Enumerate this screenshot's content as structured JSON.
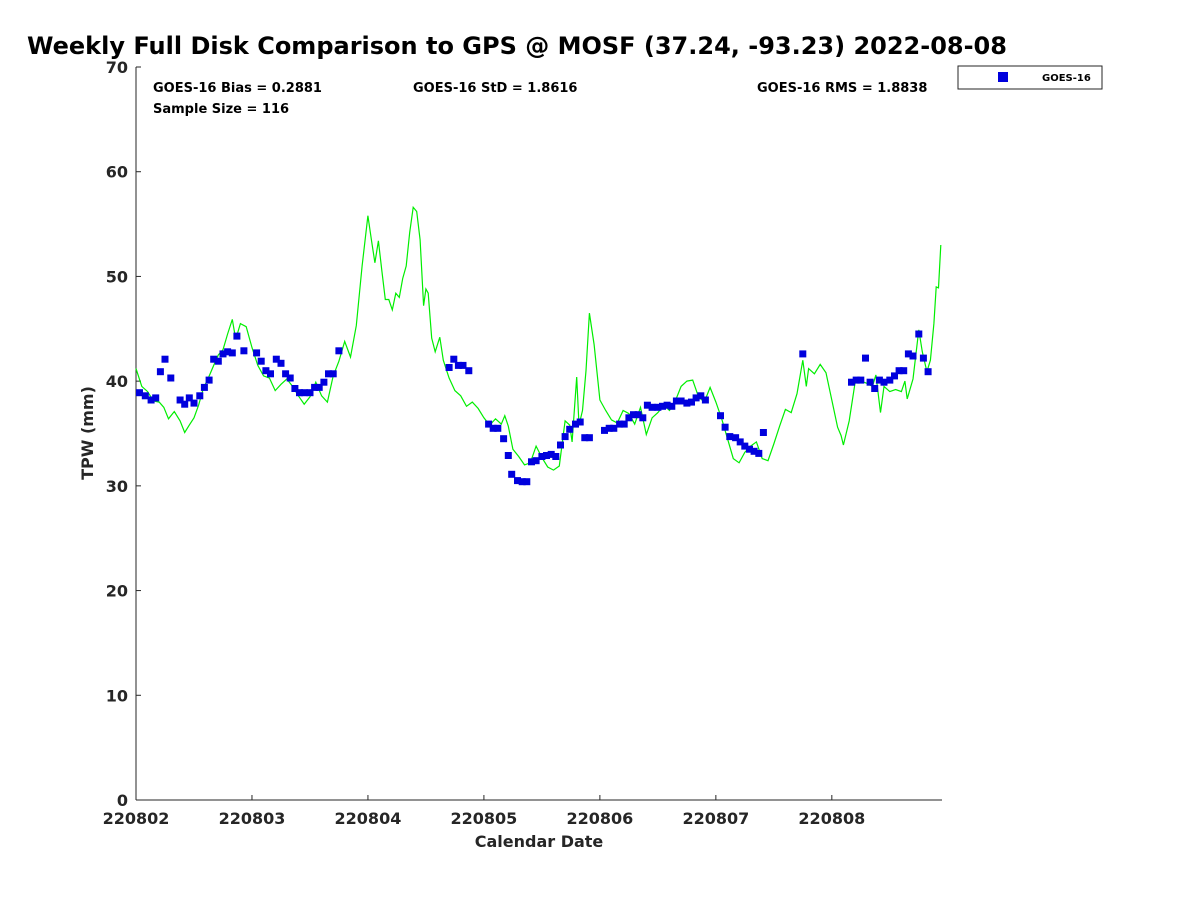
{
  "chart_data": {
    "type": "scatter",
    "title": "Weekly Full Disk Comparison to GPS @ MOSF (37.24, -93.23) 2022-08-08",
    "xlabel": "Calendar Date",
    "ylabel": "TPW (mm)",
    "xlim": [
      0,
      6.95
    ],
    "ylim": [
      0,
      70
    ],
    "yticks": [
      0,
      10,
      20,
      30,
      40,
      50,
      60,
      70
    ],
    "xticks": [
      {
        "value": 0,
        "label": "220802"
      },
      {
        "value": 1,
        "label": "220803"
      },
      {
        "value": 2,
        "label": "220804"
      },
      {
        "value": 3,
        "label": "220805"
      },
      {
        "value": 4,
        "label": "220806"
      },
      {
        "value": 5,
        "label": "220807"
      },
      {
        "value": 6,
        "label": "220808"
      }
    ],
    "stats": {
      "bias": "GOES-16 Bias = 0.2881",
      "std": "GOES-16 StD = 1.8616",
      "rms": "GOES-16 RMS = 1.8838",
      "sample": "Sample Size = 116"
    },
    "legend": {
      "label": "GOES-16",
      "placement": "outside-top-right"
    },
    "colors": {
      "goes": "#0000dd",
      "gps": "#00ee00",
      "axis": "#262626"
    },
    "series": [
      {
        "name": "GOES-16",
        "kind": "markers",
        "points": [
          [
            0.03,
            38.9
          ],
          [
            0.08,
            38.6
          ],
          [
            0.13,
            38.2
          ],
          [
            0.17,
            38.4
          ],
          [
            0.21,
            40.9
          ],
          [
            0.25,
            42.1
          ],
          [
            0.3,
            40.3
          ],
          [
            0.38,
            38.2
          ],
          [
            0.42,
            37.8
          ],
          [
            0.46,
            38.4
          ],
          [
            0.5,
            37.9
          ],
          [
            0.55,
            38.6
          ],
          [
            0.59,
            39.4
          ],
          [
            0.63,
            40.1
          ],
          [
            0.67,
            42.1
          ],
          [
            0.71,
            41.9
          ],
          [
            0.75,
            42.6
          ],
          [
            0.79,
            42.8
          ],
          [
            0.83,
            42.7
          ],
          [
            0.87,
            44.3
          ],
          [
            0.93,
            42.9
          ],
          [
            1.04,
            42.7
          ],
          [
            1.08,
            41.9
          ],
          [
            1.12,
            41.0
          ],
          [
            1.16,
            40.7
          ],
          [
            1.21,
            42.1
          ],
          [
            1.25,
            41.7
          ],
          [
            1.29,
            40.7
          ],
          [
            1.33,
            40.3
          ],
          [
            1.37,
            39.3
          ],
          [
            1.41,
            38.9
          ],
          [
            1.45,
            38.9
          ],
          [
            1.5,
            38.9
          ],
          [
            1.54,
            39.4
          ],
          [
            1.58,
            39.4
          ],
          [
            1.62,
            39.9
          ],
          [
            1.66,
            40.7
          ],
          [
            1.7,
            40.7
          ],
          [
            1.75,
            42.9
          ],
          [
            2.7,
            41.3
          ],
          [
            2.74,
            42.1
          ],
          [
            2.78,
            41.5
          ],
          [
            2.82,
            41.5
          ],
          [
            2.87,
            41.0
          ],
          [
            3.04,
            35.9
          ],
          [
            3.08,
            35.5
          ],
          [
            3.12,
            35.5
          ],
          [
            3.17,
            34.5
          ],
          [
            3.21,
            32.9
          ],
          [
            3.24,
            31.1
          ],
          [
            3.29,
            30.5
          ],
          [
            3.33,
            30.4
          ],
          [
            3.37,
            30.4
          ],
          [
            3.41,
            32.3
          ],
          [
            3.45,
            32.4
          ],
          [
            3.5,
            32.8
          ],
          [
            3.54,
            32.9
          ],
          [
            3.58,
            33.0
          ],
          [
            3.62,
            32.8
          ],
          [
            3.66,
            33.9
          ],
          [
            3.7,
            34.7
          ],
          [
            3.74,
            35.4
          ],
          [
            3.79,
            35.9
          ],
          [
            3.83,
            36.1
          ],
          [
            3.87,
            34.6
          ],
          [
            3.91,
            34.6
          ],
          [
            4.04,
            35.3
          ],
          [
            4.08,
            35.5
          ],
          [
            4.12,
            35.5
          ],
          [
            4.17,
            35.9
          ],
          [
            4.21,
            35.9
          ],
          [
            4.25,
            36.5
          ],
          [
            4.29,
            36.8
          ],
          [
            4.33,
            36.8
          ],
          [
            4.37,
            36.5
          ],
          [
            4.41,
            37.7
          ],
          [
            4.45,
            37.5
          ],
          [
            4.5,
            37.5
          ],
          [
            4.54,
            37.6
          ],
          [
            4.58,
            37.7
          ],
          [
            4.62,
            37.6
          ],
          [
            4.66,
            38.1
          ],
          [
            4.7,
            38.1
          ],
          [
            4.75,
            37.9
          ],
          [
            4.79,
            38.0
          ],
          [
            4.83,
            38.4
          ],
          [
            4.87,
            38.6
          ],
          [
            4.91,
            38.2
          ],
          [
            5.04,
            36.7
          ],
          [
            5.08,
            35.6
          ],
          [
            5.12,
            34.7
          ],
          [
            5.17,
            34.6
          ],
          [
            5.21,
            34.2
          ],
          [
            5.25,
            33.8
          ],
          [
            5.29,
            33.5
          ],
          [
            5.33,
            33.3
          ],
          [
            5.37,
            33.1
          ],
          [
            5.41,
            35.1
          ],
          [
            5.75,
            42.6
          ],
          [
            6.17,
            39.9
          ],
          [
            6.21,
            40.1
          ],
          [
            6.25,
            40.1
          ],
          [
            6.29,
            42.2
          ],
          [
            6.33,
            39.9
          ],
          [
            6.37,
            39.3
          ],
          [
            6.41,
            40.1
          ],
          [
            6.45,
            39.9
          ],
          [
            6.5,
            40.1
          ],
          [
            6.54,
            40.5
          ],
          [
            6.58,
            41.0
          ],
          [
            6.62,
            41.0
          ],
          [
            6.66,
            42.6
          ],
          [
            6.7,
            42.4
          ],
          [
            6.75,
            44.5
          ],
          [
            6.79,
            42.2
          ],
          [
            6.83,
            40.9
          ]
        ]
      },
      {
        "name": "GPS",
        "kind": "line",
        "points": [
          [
            0.0,
            41.2
          ],
          [
            0.05,
            39.5
          ],
          [
            0.1,
            39.0
          ],
          [
            0.15,
            38.1
          ],
          [
            0.2,
            38.0
          ],
          [
            0.24,
            37.5
          ],
          [
            0.28,
            36.4
          ],
          [
            0.33,
            37.1
          ],
          [
            0.38,
            36.2
          ],
          [
            0.42,
            35.1
          ],
          [
            0.46,
            35.8
          ],
          [
            0.5,
            36.5
          ],
          [
            0.54,
            37.7
          ],
          [
            0.58,
            39.3
          ],
          [
            0.62,
            40.2
          ],
          [
            0.67,
            41.5
          ],
          [
            0.71,
            42.5
          ],
          [
            0.75,
            43.0
          ],
          [
            0.79,
            44.5
          ],
          [
            0.83,
            45.9
          ],
          [
            0.86,
            44.0
          ],
          [
            0.9,
            45.5
          ],
          [
            0.95,
            45.2
          ],
          [
            1.0,
            43.2
          ],
          [
            1.05,
            41.5
          ],
          [
            1.1,
            40.5
          ],
          [
            1.15,
            40.3
          ],
          [
            1.2,
            39.1
          ],
          [
            1.25,
            39.7
          ],
          [
            1.3,
            40.2
          ],
          [
            1.35,
            39.5
          ],
          [
            1.4,
            38.6
          ],
          [
            1.45,
            37.8
          ],
          [
            1.5,
            38.5
          ],
          [
            1.55,
            39.9
          ],
          [
            1.6,
            38.6
          ],
          [
            1.65,
            38.0
          ],
          [
            1.7,
            40.5
          ],
          [
            1.75,
            41.9
          ],
          [
            1.8,
            43.8
          ],
          [
            1.85,
            42.3
          ],
          [
            1.9,
            45.3
          ],
          [
            1.95,
            51.0
          ],
          [
            2.0,
            55.8
          ],
          [
            2.03,
            53.5
          ],
          [
            2.06,
            51.3
          ],
          [
            2.09,
            53.4
          ],
          [
            2.12,
            50.5
          ],
          [
            2.15,
            47.8
          ],
          [
            2.18,
            47.8
          ],
          [
            2.21,
            46.8
          ],
          [
            2.24,
            48.4
          ],
          [
            2.27,
            48.0
          ],
          [
            2.3,
            49.8
          ],
          [
            2.33,
            51.0
          ],
          [
            2.36,
            54.2
          ],
          [
            2.39,
            56.6
          ],
          [
            2.42,
            56.2
          ],
          [
            2.45,
            53.5
          ],
          [
            2.48,
            47.2
          ],
          [
            2.5,
            48.8
          ],
          [
            2.52,
            48.4
          ],
          [
            2.55,
            44.1
          ],
          [
            2.58,
            42.8
          ],
          [
            2.62,
            44.2
          ],
          [
            2.65,
            42.0
          ],
          [
            2.7,
            40.3
          ],
          [
            2.75,
            39.1
          ],
          [
            2.8,
            38.6
          ],
          [
            2.85,
            37.6
          ],
          [
            2.9,
            38.0
          ],
          [
            2.95,
            37.4
          ],
          [
            3.0,
            36.5
          ],
          [
            3.05,
            35.8
          ],
          [
            3.1,
            36.4
          ],
          [
            3.15,
            35.9
          ],
          [
            3.18,
            36.7
          ],
          [
            3.21,
            35.7
          ],
          [
            3.25,
            33.5
          ],
          [
            3.3,
            32.8
          ],
          [
            3.35,
            32.0
          ],
          [
            3.4,
            32.2
          ],
          [
            3.45,
            33.8
          ],
          [
            3.5,
            32.7
          ],
          [
            3.55,
            31.8
          ],
          [
            3.6,
            31.5
          ],
          [
            3.65,
            31.9
          ],
          [
            3.7,
            36.2
          ],
          [
            3.74,
            35.8
          ],
          [
            3.76,
            34.2
          ],
          [
            3.8,
            40.4
          ],
          [
            3.82,
            35.8
          ],
          [
            3.85,
            37.2
          ],
          [
            3.88,
            41.0
          ],
          [
            3.91,
            46.5
          ],
          [
            3.95,
            43.5
          ],
          [
            4.0,
            38.2
          ],
          [
            4.05,
            37.2
          ],
          [
            4.1,
            36.3
          ],
          [
            4.15,
            36.0
          ],
          [
            4.2,
            37.2
          ],
          [
            4.25,
            36.9
          ],
          [
            4.3,
            35.9
          ],
          [
            4.35,
            37.5
          ],
          [
            4.4,
            34.9
          ],
          [
            4.45,
            36.5
          ],
          [
            4.5,
            37.0
          ],
          [
            4.55,
            37.7
          ],
          [
            4.6,
            37.2
          ],
          [
            4.65,
            38.1
          ],
          [
            4.7,
            39.5
          ],
          [
            4.75,
            40.0
          ],
          [
            4.8,
            40.1
          ],
          [
            4.85,
            38.5
          ],
          [
            4.9,
            38.0
          ],
          [
            4.95,
            39.4
          ],
          [
            5.0,
            38.0
          ],
          [
            5.05,
            36.4
          ],
          [
            5.1,
            34.5
          ],
          [
            5.15,
            32.6
          ],
          [
            5.2,
            32.2
          ],
          [
            5.25,
            33.2
          ],
          [
            5.3,
            33.8
          ],
          [
            5.35,
            34.2
          ],
          [
            5.4,
            32.6
          ],
          [
            5.45,
            32.4
          ],
          [
            5.5,
            34.0
          ],
          [
            5.55,
            35.7
          ],
          [
            5.6,
            37.3
          ],
          [
            5.65,
            37.0
          ],
          [
            5.7,
            38.8
          ],
          [
            5.75,
            42.0
          ],
          [
            5.78,
            39.5
          ],
          [
            5.8,
            41.2
          ],
          [
            5.85,
            40.7
          ],
          [
            5.9,
            41.6
          ],
          [
            5.95,
            40.8
          ],
          [
            6.0,
            38.2
          ],
          [
            6.05,
            35.6
          ],
          [
            6.08,
            34.8
          ],
          [
            6.1,
            33.9
          ],
          [
            6.15,
            36.2
          ],
          [
            6.2,
            39.8
          ],
          [
            6.25,
            40.0
          ],
          [
            6.3,
            39.8
          ],
          [
            6.35,
            39.5
          ],
          [
            6.38,
            40.6
          ],
          [
            6.42,
            37.0
          ],
          [
            6.45,
            39.5
          ],
          [
            6.5,
            39.0
          ],
          [
            6.55,
            39.2
          ],
          [
            6.6,
            39.0
          ],
          [
            6.63,
            40.0
          ],
          [
            6.65,
            38.3
          ],
          [
            6.7,
            40.2
          ],
          [
            6.75,
            44.9
          ],
          [
            6.78,
            42.8
          ],
          [
            6.82,
            40.9
          ],
          [
            6.85,
            42.0
          ],
          [
            6.88,
            45.5
          ],
          [
            6.9,
            49.0
          ],
          [
            6.92,
            48.9
          ],
          [
            6.94,
            53.0
          ]
        ]
      }
    ]
  }
}
